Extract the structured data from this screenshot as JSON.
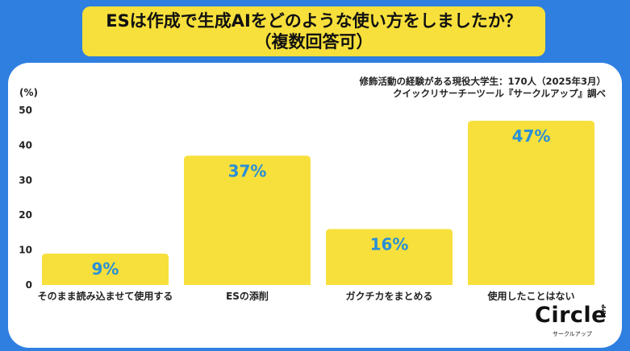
{
  "title": {
    "line1": "ESは作成で生成AIをどのような使い方をしましたか？",
    "line2": "（複数回答可）"
  },
  "source": {
    "line1": "修飾活動の経験がある現役大学生：170人（2025年3月）",
    "line2": "クイックリサーチーツール『サークルアップ』調べ"
  },
  "logo": {
    "word": "Circle",
    "app": "APP",
    "sub": "サークルアップ"
  },
  "colors": {
    "background": "#2f7fe0",
    "bar": "#f7e03c",
    "label": "#2a8fd6",
    "title_box": "#f7e03c"
  },
  "chart_data": {
    "type": "bar",
    "ylabel": "(%)",
    "ylim": [
      0,
      50
    ],
    "yticks": [
      0,
      10,
      20,
      30,
      40,
      50
    ],
    "grid": false,
    "categories": [
      "そのまま読み込ませて使用する",
      "ESの添削",
      "ガクチカをまとめる",
      "使用したことはない"
    ],
    "values": [
      9,
      37,
      16,
      47
    ],
    "value_labels": [
      "9%",
      "37%",
      "16%",
      "47%"
    ]
  }
}
